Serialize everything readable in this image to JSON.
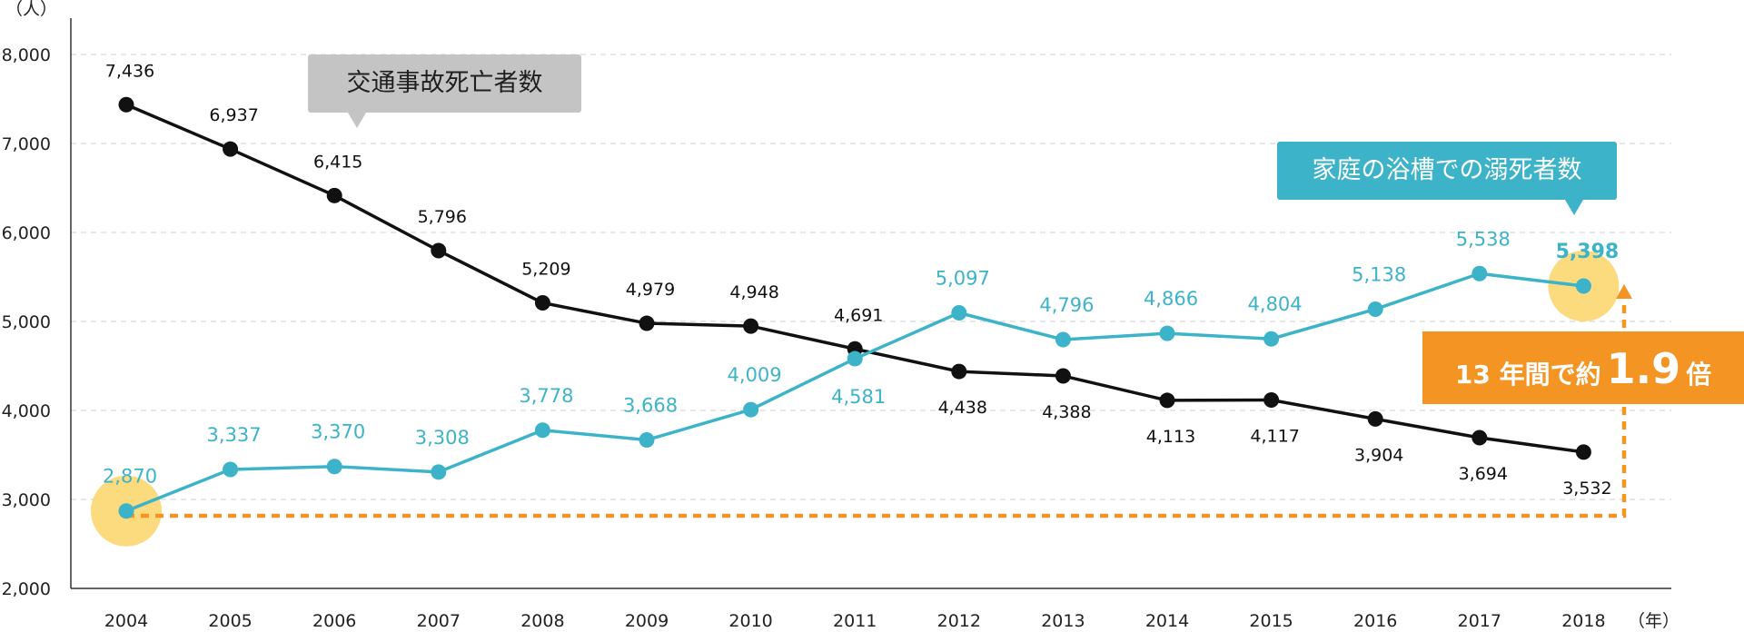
{
  "chart_data": {
    "type": "line",
    "y_unit": "（人）",
    "x_unit": "（年）",
    "ylim": [
      2000,
      8000
    ],
    "yticks": [
      2000,
      3000,
      4000,
      5000,
      6000,
      7000,
      8000
    ],
    "ytick_labels": [
      "2,000",
      "3,000",
      "4,000",
      "5,000",
      "6,000",
      "7,000",
      "8,000"
    ],
    "grid": "horizontal-dashed",
    "categories": [
      "2004",
      "2005",
      "2006",
      "2007",
      "2008",
      "2009",
      "2010",
      "2011",
      "2012",
      "2013",
      "2014",
      "2015",
      "2016",
      "2017",
      "2018"
    ],
    "series": [
      {
        "name": "交通事故死亡者数",
        "color": "#111111",
        "values": [
          7436,
          6937,
          6415,
          5796,
          5209,
          4979,
          4948,
          4691,
          4438,
          4388,
          4113,
          4117,
          3904,
          3694,
          3532
        ],
        "labels": [
          "7,436",
          "6,937",
          "6,415",
          "5,796",
          "5,209",
          "4,979",
          "4,948",
          "4,691",
          "4,438",
          "4,388",
          "4,113",
          "4,117",
          "3,904",
          "3,694",
          "3,532"
        ]
      },
      {
        "name": "家庭の浴槽での溺死者数",
        "color": "#3db3c9",
        "values": [
          2870,
          3337,
          3370,
          3308,
          3778,
          3668,
          4009,
          4581,
          5097,
          4796,
          4866,
          4804,
          5138,
          5538,
          5398
        ],
        "labels": [
          "2,870",
          "3,337",
          "3,370",
          "3,308",
          "3,778",
          "3,668",
          "4,009",
          "4,581",
          "5,097",
          "4,796",
          "4,866",
          "4,804",
          "5,138",
          "5,538",
          "5,398"
        ]
      }
    ],
    "highlight_color": "#fcd877",
    "arrow_color": "#f39423"
  },
  "callouts": {
    "traffic": "交通事故死亡者数",
    "bath": "家庭の浴槽での溺死者数"
  },
  "badge": {
    "prefix": "13 年間で約",
    "value": "1.9",
    "suffix": "倍"
  }
}
